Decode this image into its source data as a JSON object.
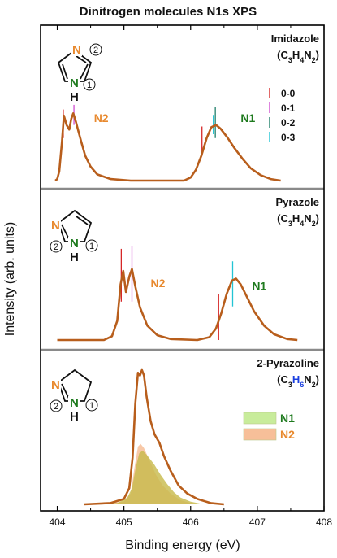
{
  "chart_data": {
    "type": "line",
    "title": "Dinitrogen molecules N1s XPS",
    "xlabel": "Binding energy (eV)",
    "ylabel": "Intensity (arb. units)",
    "xlim": [
      403.75,
      408
    ],
    "x_ticks": [
      "404",
      "405",
      "406",
      "407",
      "408"
    ],
    "colors": {
      "spectrum": "#b85e1c",
      "frame": "#000000",
      "n2_label": "#e8892e",
      "n1_label": "#1e7a1e",
      "h6": "#1a3fe0",
      "divider": "#8a8a8a"
    },
    "vib_legend": [
      {
        "label": "0-0",
        "color": "#d62728"
      },
      {
        "label": "0-1",
        "color": "#d04fd0"
      },
      {
        "label": "0-2",
        "color": "#1f7f6a"
      },
      {
        "label": "0-3",
        "color": "#22c4d4"
      }
    ],
    "panels": [
      {
        "name_line1": "Imidazole",
        "formula": [
          {
            "t": "(C",
            "sub": false
          },
          {
            "t": "3",
            "sub": true
          },
          {
            "t": "H",
            "sub": false
          },
          {
            "t": "4",
            "sub": true
          },
          {
            "t": "N",
            "sub": false
          },
          {
            "t": "2",
            "sub": true
          },
          {
            "t": ")",
            "sub": false
          }
        ],
        "peak_labels": [
          {
            "text": "N2",
            "x": 404.55,
            "y": 0.76,
            "color": "#e8892e"
          },
          {
            "text": "N1",
            "x": 406.75,
            "y": 0.76,
            "color": "#1e7a1e"
          }
        ],
        "vib_lines": [
          {
            "x": 404.09,
            "y0": 0.55,
            "y1": 0.92,
            "c": 0
          },
          {
            "x": 404.25,
            "y0": 0.72,
            "y1": 0.98,
            "c": 1
          },
          {
            "x": 406.17,
            "y0": 0.32,
            "y1": 0.7,
            "c": 0
          },
          {
            "x": 406.37,
            "y0": 0.55,
            "y1": 0.95,
            "c": 2
          },
          {
            "x": 406.34,
            "y0": 0.6,
            "y1": 0.85,
            "c": 3
          }
        ],
        "spectrum": [
          [
            403.97,
            0.0
          ],
          [
            404.0,
            0.02
          ],
          [
            404.03,
            0.12
          ],
          [
            404.07,
            0.5
          ],
          [
            404.1,
            0.84
          ],
          [
            404.14,
            0.72
          ],
          [
            404.18,
            0.66
          ],
          [
            404.21,
            0.8
          ],
          [
            404.24,
            0.87
          ],
          [
            404.28,
            0.76
          ],
          [
            404.31,
            0.66
          ],
          [
            404.36,
            0.5
          ],
          [
            404.42,
            0.32
          ],
          [
            404.5,
            0.18
          ],
          [
            404.6,
            0.08
          ],
          [
            404.8,
            0.02
          ],
          [
            405.1,
            0.0
          ],
          [
            405.9,
            0.0
          ],
          [
            406.0,
            0.04
          ],
          [
            406.08,
            0.14
          ],
          [
            406.16,
            0.32
          ],
          [
            406.24,
            0.55
          ],
          [
            406.31,
            0.69
          ],
          [
            406.38,
            0.72
          ],
          [
            406.45,
            0.67
          ],
          [
            406.55,
            0.56
          ],
          [
            406.65,
            0.43
          ],
          [
            406.78,
            0.28
          ],
          [
            406.9,
            0.16
          ],
          [
            407.05,
            0.07
          ],
          [
            407.2,
            0.02
          ],
          [
            407.35,
            0.0
          ]
        ]
      },
      {
        "name_line1": "Pyrazole",
        "formula": [
          {
            "t": "(C",
            "sub": false
          },
          {
            "t": "3",
            "sub": true
          },
          {
            "t": "H",
            "sub": false
          },
          {
            "t": "4",
            "sub": true
          },
          {
            "t": "N",
            "sub": false
          },
          {
            "t": "2",
            "sub": true
          },
          {
            "t": ")",
            "sub": false
          }
        ],
        "peak_labels": [
          {
            "text": "N2",
            "x": 405.4,
            "y": 0.55,
            "color": "#e8892e"
          },
          {
            "text": "N1",
            "x": 406.92,
            "y": 0.52,
            "color": "#1e7a1e"
          }
        ],
        "vib_lines": [
          {
            "x": 404.96,
            "y0": 0.4,
            "y1": 0.95,
            "c": 0
          },
          {
            "x": 405.12,
            "y0": 0.4,
            "y1": 0.98,
            "c": 1
          },
          {
            "x": 406.42,
            "y0": 0.0,
            "y1": 0.48,
            "c": 0
          },
          {
            "x": 406.63,
            "y0": 0.35,
            "y1": 0.82,
            "c": 3
          }
        ],
        "spectrum": [
          [
            404.0,
            0.0
          ],
          [
            404.7,
            0.0
          ],
          [
            404.82,
            0.04
          ],
          [
            404.9,
            0.2
          ],
          [
            404.95,
            0.58
          ],
          [
            404.99,
            0.72
          ],
          [
            405.03,
            0.5
          ],
          [
            405.08,
            0.66
          ],
          [
            405.12,
            0.74
          ],
          [
            405.17,
            0.56
          ],
          [
            405.24,
            0.34
          ],
          [
            405.35,
            0.15
          ],
          [
            405.5,
            0.05
          ],
          [
            405.7,
            0.01
          ],
          [
            406.1,
            0.0
          ],
          [
            406.28,
            0.03
          ],
          [
            406.38,
            0.12
          ],
          [
            406.46,
            0.28
          ],
          [
            406.54,
            0.48
          ],
          [
            406.62,
            0.62
          ],
          [
            406.68,
            0.64
          ],
          [
            406.75,
            0.58
          ],
          [
            406.85,
            0.44
          ],
          [
            406.95,
            0.3
          ],
          [
            407.1,
            0.15
          ],
          [
            407.25,
            0.06
          ],
          [
            407.45,
            0.01
          ],
          [
            407.6,
            0.0
          ]
        ]
      },
      {
        "name_line1": "2-Pyrazoline",
        "formula": [
          {
            "t": "(C",
            "sub": false,
            "blue": false
          },
          {
            "t": "3",
            "sub": true,
            "blue": false
          },
          {
            "t": "H",
            "sub": false,
            "blue": true
          },
          {
            "t": "6",
            "sub": true,
            "blue": true
          },
          {
            "t": "N",
            "sub": false,
            "blue": false
          },
          {
            "t": "2",
            "sub": true,
            "blue": false
          },
          {
            "t": ")",
            "sub": false,
            "blue": false
          }
        ],
        "fill_legend": [
          {
            "label": "N1",
            "color": "#c8ec9b",
            "text_color": "#1e7a1e"
          },
          {
            "label": "N2",
            "color": "#f7bf99",
            "text_color": "#e8892e"
          }
        ],
        "spectrum": [
          [
            404.4,
            0.0
          ],
          [
            404.8,
            0.01
          ],
          [
            405.0,
            0.04
          ],
          [
            405.08,
            0.12
          ],
          [
            405.13,
            0.35
          ],
          [
            405.17,
            0.75
          ],
          [
            405.21,
            0.98
          ],
          [
            405.24,
            0.96
          ],
          [
            405.27,
            1.0
          ],
          [
            405.3,
            0.96
          ],
          [
            405.34,
            0.8
          ],
          [
            405.4,
            0.62
          ],
          [
            405.46,
            0.52
          ],
          [
            405.53,
            0.46
          ],
          [
            405.6,
            0.36
          ],
          [
            405.7,
            0.25
          ],
          [
            405.82,
            0.14
          ],
          [
            405.95,
            0.08
          ],
          [
            406.1,
            0.04
          ],
          [
            406.3,
            0.01
          ],
          [
            406.5,
            0.0
          ]
        ],
        "fill_n1": [
          [
            404.4,
            0.0
          ],
          [
            404.9,
            0.01
          ],
          [
            405.05,
            0.05
          ],
          [
            405.12,
            0.12
          ],
          [
            405.18,
            0.28
          ],
          [
            405.23,
            0.38
          ],
          [
            405.28,
            0.4
          ],
          [
            405.34,
            0.37
          ],
          [
            405.45,
            0.3
          ],
          [
            405.55,
            0.22
          ],
          [
            405.65,
            0.15
          ],
          [
            405.75,
            0.09
          ],
          [
            405.85,
            0.05
          ],
          [
            406.0,
            0.02
          ],
          [
            406.2,
            0.0
          ]
        ],
        "fill_n2": [
          [
            404.5,
            0.0
          ],
          [
            405.0,
            0.02
          ],
          [
            405.1,
            0.08
          ],
          [
            405.16,
            0.28
          ],
          [
            405.21,
            0.43
          ],
          [
            405.25,
            0.45
          ],
          [
            405.3,
            0.42
          ],
          [
            405.38,
            0.33
          ],
          [
            405.48,
            0.22
          ],
          [
            405.58,
            0.14
          ],
          [
            405.7,
            0.08
          ],
          [
            405.85,
            0.03
          ],
          [
            406.0,
            0.01
          ],
          [
            406.2,
            0.0
          ]
        ]
      }
    ]
  }
}
